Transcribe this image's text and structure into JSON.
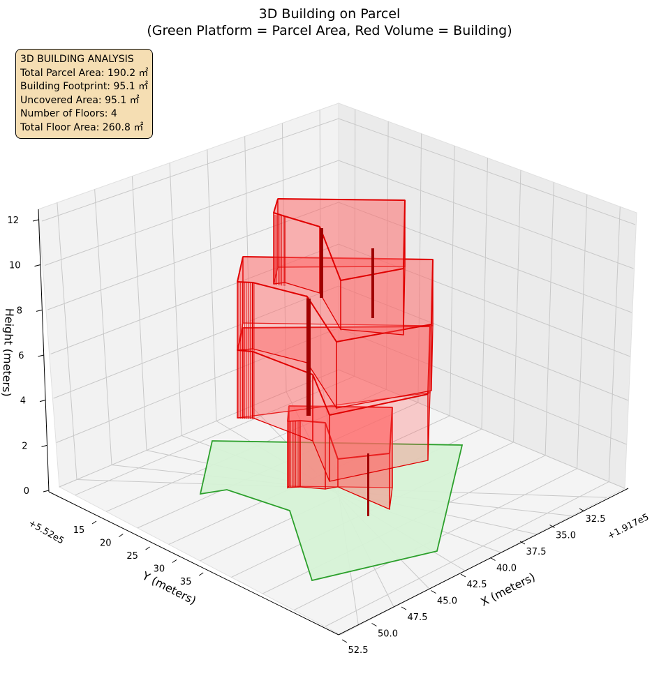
{
  "chart_data": {
    "type": "3d-surface",
    "title_line1": "3D Building on Parcel",
    "title_line2": "(Green Platform = Parcel Area, Red Volume = Building)",
    "xlabel": "X (meters)",
    "ylabel": "Y (meters)",
    "zlabel": "Height (meters)",
    "x_offset": "+1.917e5",
    "y_offset": "+5.52e5",
    "x_ticks": [
      "32.5",
      "35.0",
      "37.5",
      "40.0",
      "42.5",
      "45.0",
      "47.5",
      "50.0",
      "52.5"
    ],
    "y_ticks": [
      "15",
      "20",
      "25",
      "30",
      "35"
    ],
    "z_ticks": [
      "0",
      "2",
      "4",
      "6",
      "8",
      "10",
      "12"
    ],
    "zlim": [
      0,
      12
    ],
    "parcel_color": "#2ca02c",
    "parcel_fill": "#d6f2d6",
    "building_color": "#e00000",
    "building_fill": "#ff6666",
    "num_floors": 4
  },
  "info": {
    "heading": "3D BUILDING ANALYSIS",
    "total_parcel_area": "Total Parcel Area: 190.2 ㎡",
    "building_footprint": "Building Footprint: 95.1 ㎡",
    "uncovered_area": "Uncovered Area: 95.1 ㎡",
    "number_of_floors": "Number of Floors: 4",
    "total_floor_area": "Total Floor Area: 260.8 ㎡"
  }
}
